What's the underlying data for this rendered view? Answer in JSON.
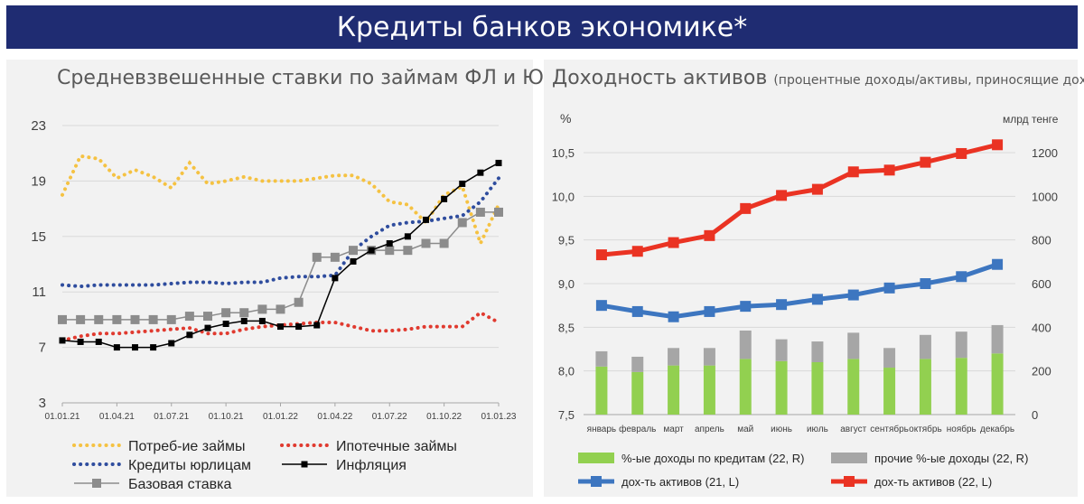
{
  "header": {
    "title": "Кредиты банков экономике*"
  },
  "left_panel": {
    "title": "Средневзвешенные ставки по займам ФЛ и ЮЛ"
  },
  "right_panel": {
    "title": "Доходность активов",
    "subtitle": "(процентные доходы/активы, приносящие доход)"
  },
  "colors": {
    "banner": "#1f2c72",
    "consumer": "#f5c242",
    "mortgage": "#e03a2f",
    "corporate": "#2f4d9e",
    "inflation": "#000000",
    "base_rate": "#8c8c8c",
    "bar_green": "#92d050",
    "bar_gray": "#a6a6a6",
    "line21": "#3d76c0",
    "line22": "#ea3323"
  },
  "chart_data": [
    {
      "type": "line",
      "title": "Средневзвешенные ставки по займам ФЛ и ЮЛ",
      "ylim": [
        3,
        23
      ],
      "yticks": [
        "3",
        "7",
        "11",
        "15",
        "19",
        "23"
      ],
      "xticks": [
        "01.01.21",
        "01.04.21",
        "01.07.21",
        "01.10.21",
        "01.01.22",
        "01.04.22",
        "01.07.22",
        "01.10.22",
        "01.01.23"
      ],
      "n_points": 25,
      "series": [
        {
          "name": "Потреб-ие займы",
          "values": [
            18,
            20.8,
            20.6,
            19.2,
            19.8,
            19.3,
            18.5,
            20.3,
            18.8,
            19.0,
            19.3,
            19.0,
            19.0,
            19.0,
            19.2,
            19.4,
            19.4,
            18.8,
            17.5,
            17.3,
            16.0,
            18.0,
            18.6,
            14.5,
            17.3
          ]
        },
        {
          "name": "Ипотечные займы",
          "values": [
            7.5,
            7.8,
            8.0,
            8.0,
            8.1,
            8.2,
            8.3,
            8.4,
            8.0,
            8.0,
            8.3,
            8.5,
            8.6,
            8.7,
            8.8,
            8.8,
            8.5,
            8.2,
            8.2,
            8.3,
            8.5,
            8.5,
            8.5,
            9.5,
            8.8
          ]
        },
        {
          "name": "Кредиты юрлицам",
          "values": [
            11.5,
            11.4,
            11.5,
            11.5,
            11.5,
            11.5,
            11.6,
            11.7,
            11.7,
            11.6,
            11.7,
            11.7,
            12.0,
            12.1,
            12.1,
            12.2,
            14.0,
            15.0,
            15.8,
            16.0,
            16.1,
            16.3,
            16.5,
            17.5,
            19.2
          ]
        },
        {
          "name": "Инфляция",
          "values": [
            7.5,
            7.4,
            7.4,
            7.0,
            7.0,
            7.0,
            7.3,
            7.9,
            8.4,
            8.7,
            8.9,
            8.9,
            8.5,
            8.5,
            8.6,
            12.0,
            13.2,
            14.0,
            14.5,
            15.0,
            16.2,
            17.7,
            18.8,
            19.6,
            20.3
          ]
        },
        {
          "name": "Базовая ставка",
          "values": [
            9.0,
            9.0,
            9.0,
            9.0,
            9.0,
            9.0,
            9.0,
            9.25,
            9.25,
            9.5,
            9.5,
            9.75,
            9.75,
            10.25,
            13.5,
            13.5,
            14.0,
            14.0,
            14.0,
            14.0,
            14.5,
            14.5,
            16.0,
            16.75,
            16.75
          ]
        }
      ]
    },
    {
      "type": "bar_line_combo",
      "title": "Доходность активов",
      "left_axis": {
        "label": "%",
        "ylim": [
          7.5,
          10.5
        ],
        "ticks": [
          "7,5",
          "8,0",
          "8,5",
          "9,0",
          "9,5",
          "10,0",
          "10,5"
        ]
      },
      "right_axis": {
        "label": "млрд тенге",
        "ylim": [
          0,
          1200
        ],
        "ticks": [
          "0",
          "200",
          "400",
          "600",
          "800",
          "1000",
          "1200"
        ]
      },
      "categories": [
        "январь",
        "февраль",
        "март",
        "апрель",
        "май",
        "июнь",
        "июль",
        "август",
        "сентябрь",
        "октябрь",
        "ноябрь",
        "декабрь"
      ],
      "bars": [
        {
          "name": "%-ые доходы по кредитам (22, R)",
          "values": [
            220,
            195,
            225,
            225,
            255,
            245,
            240,
            255,
            215,
            255,
            260,
            280
          ]
        },
        {
          "name": "прочие %-ые доходы (22, R)",
          "values": [
            70,
            70,
            80,
            80,
            130,
            100,
            95,
            120,
            90,
            110,
            120,
            130
          ]
        }
      ],
      "lines": [
        {
          "name": "дох-ть активов (21, L)",
          "values": [
            8.75,
            8.68,
            8.62,
            8.68,
            8.74,
            8.76,
            8.82,
            8.87,
            8.95,
            9.0,
            9.08,
            9.22
          ]
        },
        {
          "name": "дох-ть активов (22, L)",
          "values": [
            9.33,
            9.37,
            9.47,
            9.55,
            9.86,
            10.01,
            10.08,
            10.28,
            10.3,
            10.39,
            10.49,
            10.59
          ]
        }
      ]
    }
  ]
}
